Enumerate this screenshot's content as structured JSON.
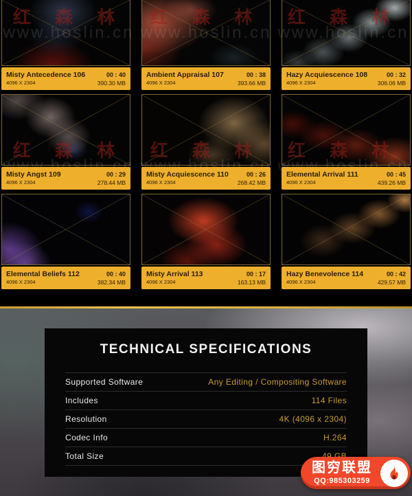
{
  "colors": {
    "accent": "#eeaf2d",
    "gold": "#c89a33",
    "badge": "#f2472a",
    "divider": "#ddb13c"
  },
  "watermark": {
    "brand": "红 森 林",
    "url": "www.hoslin.cn"
  },
  "grid": {
    "items": [
      {
        "title": "Misty Antecedence 106",
        "resolution": "4096 X 2304",
        "duration": "00 : 40",
        "size": "390.30 MB",
        "thumb": "t1"
      },
      {
        "title": "Ambient Appraisal 107",
        "resolution": "4096 X 2304",
        "duration": "00 : 38",
        "size": "393.66 MB",
        "thumb": "t2"
      },
      {
        "title": "Hazy Acquiescence 108",
        "resolution": "4096 X 2304",
        "duration": "00 : 32",
        "size": "306.06 MB",
        "thumb": "t3"
      },
      {
        "title": "Misty Angst 109",
        "resolution": "4096 X 2304",
        "duration": "00 : 29",
        "size": "278.44 MB",
        "thumb": "t4"
      },
      {
        "title": "Misty Acquiescence 110",
        "resolution": "4096 X 2304",
        "duration": "00 : 26",
        "size": "268.42 MB",
        "thumb": "t5"
      },
      {
        "title": "Elemental Arrival 111",
        "resolution": "4096 X 2304",
        "duration": "00 : 45",
        "size": "439.26 MB",
        "thumb": "t6"
      },
      {
        "title": "Elemental Beliefs 112",
        "resolution": "4096 X 2304",
        "duration": "00 : 40",
        "size": "382.34 MB",
        "thumb": "t7"
      },
      {
        "title": "Misty Arrival 113",
        "resolution": "4096 X 2304",
        "duration": "00 : 17",
        "size": "163.13 MB",
        "thumb": "t8"
      },
      {
        "title": "Hazy Benevolence 114",
        "resolution": "4096 X 2304",
        "duration": "00 : 42",
        "size": "429.57 MB",
        "thumb": "t9"
      }
    ]
  },
  "specs": {
    "title": "TECHNICAL SPECIFICATIONS",
    "rows": [
      {
        "label": "Supported Software",
        "value": "Any Editing / Compositing Software"
      },
      {
        "label": "Includes",
        "value": "114 Files"
      },
      {
        "label": "Resolution",
        "value": "4K (4096 x 2304)"
      },
      {
        "label": "Codec Info",
        "value": "H.264"
      },
      {
        "label": "Total Size",
        "value": "49 GB"
      }
    ]
  },
  "badge": {
    "name": "图穷联盟",
    "qq": "QQ:985303259"
  }
}
